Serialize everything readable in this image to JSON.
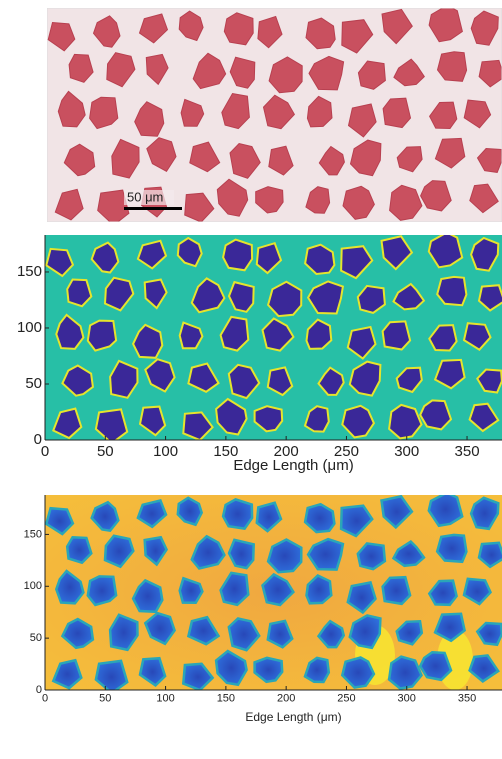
{
  "panels": [
    {
      "scale_bar": "50 μm"
    },
    {
      "xlim": [
        0,
        379
      ],
      "ylim": [
        0,
        183
      ],
      "xticks": [
        0,
        50,
        100,
        150,
        200,
        250,
        300,
        350
      ],
      "yticks": [
        0,
        50,
        100,
        150
      ],
      "xlabel": "Edge Length (μm)"
    },
    {
      "xlim": [
        0,
        379
      ],
      "ylim": [
        0,
        188
      ],
      "xticks": [
        0,
        50,
        100,
        150,
        200,
        250,
        300,
        350
      ],
      "yticks": [
        0,
        50,
        100,
        150
      ],
      "xlabel": "Edge Length (μm)"
    }
  ]
}
